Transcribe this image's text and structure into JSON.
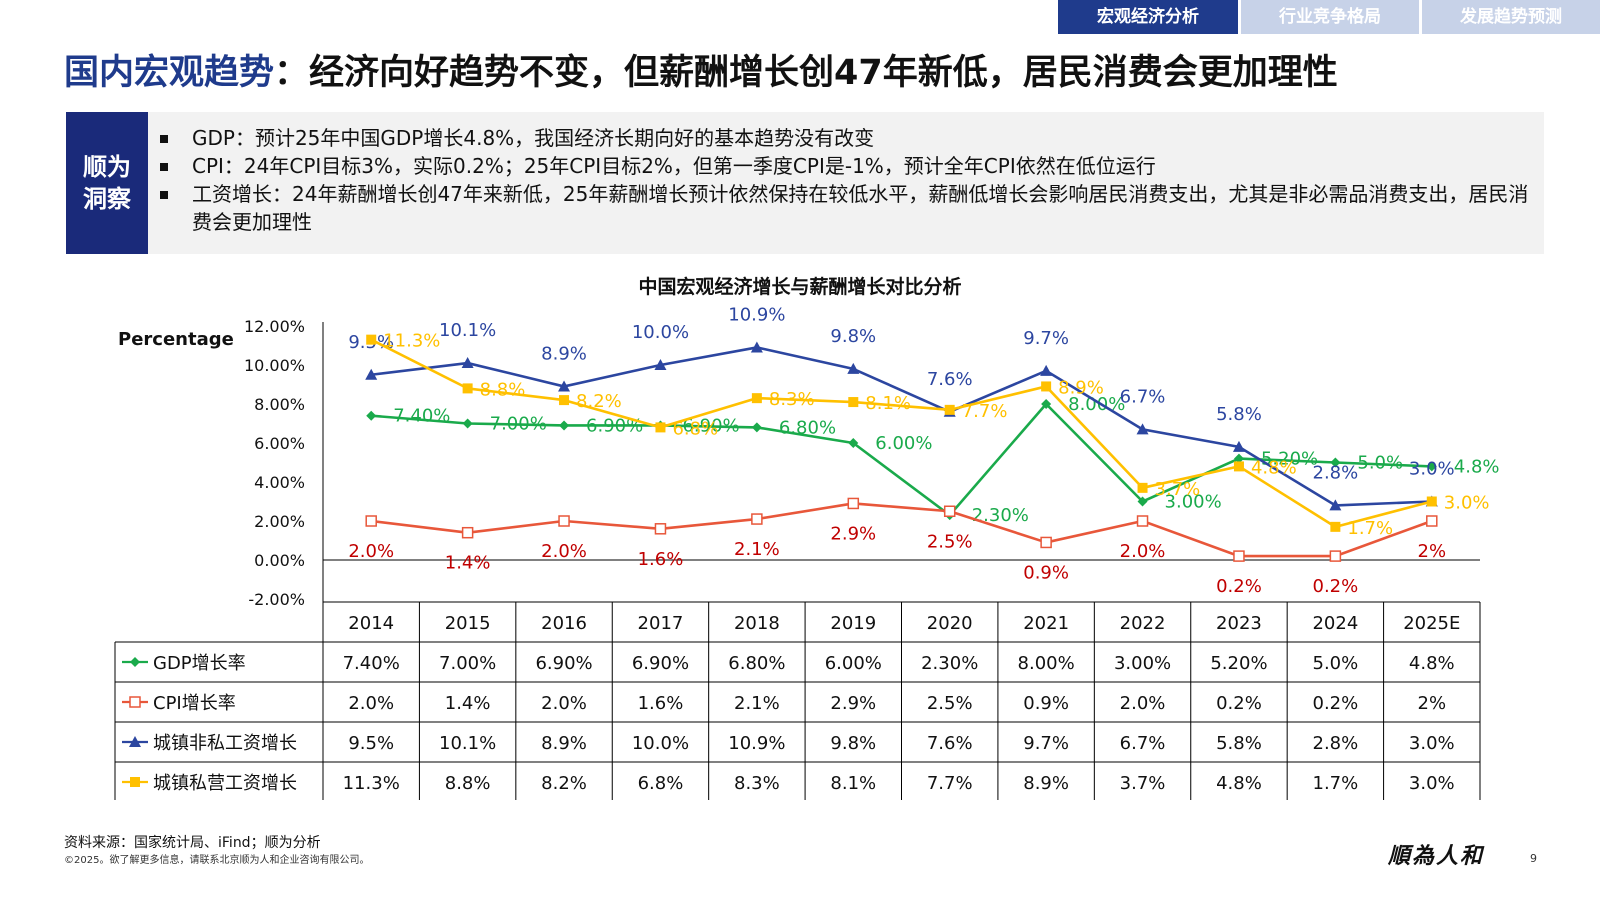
{
  "nav": {
    "tabs": [
      {
        "label": "宏观经济分析",
        "active": true
      },
      {
        "label": "行业竞争格局",
        "active": false
      },
      {
        "label": "发展趋势预测",
        "active": false
      }
    ]
  },
  "header": {
    "title_highlight": "国内宏观趋势",
    "title_rest": "：经济向好趋势不变，但薪酬增长创47年新低，居民消费会更加理性"
  },
  "insight": {
    "label_line1": "顺为",
    "label_line2": "洞察",
    "bullets": [
      "GDP：预计25年中国GDP增长4.8%，我国经济长期向好的基本趋势没有改变",
      "CPI：24年CPI目标3%，实际0.2%；25年CPI目标2%，但第一季度CPI是-1%，预计全年CPI依然在低位运行",
      "工资增长：24年薪酬增长创47年来新低，25年薪酬增长预计依然保持在较低水平，薪酬低增长会影响居民消费支出，尤其是非必需品消费支出，居民消费会更加理性"
    ]
  },
  "chart_data": {
    "type": "line",
    "title": "中国宏观经济增长与薪酬增长对比分析",
    "ylabel": "Percentage",
    "ylim": [
      -2,
      12
    ],
    "yticks": [
      "12.00%",
      "10.00%",
      "8.00%",
      "6.00%",
      "4.00%",
      "2.00%",
      "0.00%",
      "-2.00%"
    ],
    "ytick_values": [
      12,
      10,
      8,
      6,
      4,
      2,
      0,
      -2
    ],
    "categories": [
      "2014",
      "2015",
      "2016",
      "2017",
      "2018",
      "2019",
      "2020",
      "2021",
      "2022",
      "2023",
      "2024",
      "2025E"
    ],
    "grid": false,
    "legend": "data-table",
    "series": [
      {
        "name": "GDP增长率",
        "color": "#1aaa4b",
        "marker": "diamond",
        "values": [
          7.4,
          7.0,
          6.9,
          6.9,
          6.8,
          6.0,
          2.3,
          8.0,
          3.0,
          5.2,
          5.0,
          4.8
        ],
        "labels": [
          "7.40%",
          "7.00%",
          "6.90%",
          "6.90%",
          "6.80%",
          "6.00%",
          "2.30%",
          "8.00%",
          "3.00%",
          "5.20%",
          "5.0%",
          "4.8%"
        ]
      },
      {
        "name": "CPI增长率",
        "color": "#e8573a",
        "label_color": "#c00000",
        "marker": "square-open",
        "values": [
          2.0,
          1.4,
          2.0,
          1.6,
          2.1,
          2.9,
          2.5,
          0.9,
          2.0,
          0.2,
          0.2,
          2.0
        ],
        "labels": [
          "2.0%",
          "1.4%",
          "2.0%",
          "1.6%",
          "2.1%",
          "2.9%",
          "2.5%",
          "0.9%",
          "2.0%",
          "0.2%",
          "0.2%",
          "2%"
        ]
      },
      {
        "name": "城镇非私工资增长",
        "color": "#2c46a0",
        "marker": "triangle",
        "values": [
          9.5,
          10.1,
          8.9,
          10.0,
          10.9,
          9.8,
          7.6,
          9.7,
          6.7,
          5.8,
          2.8,
          3.0
        ],
        "labels": [
          "9.5%",
          "10.1%",
          "8.9%",
          "10.0%",
          "10.9%",
          "9.8%",
          "7.6%",
          "9.7%",
          "6.7%",
          "5.8%",
          "2.8%",
          "3.0%"
        ]
      },
      {
        "name": "城镇私营工资增长",
        "color": "#ffc000",
        "marker": "square",
        "values": [
          11.3,
          8.8,
          8.2,
          6.8,
          8.3,
          8.1,
          7.7,
          8.9,
          3.7,
          4.8,
          1.7,
          3.0
        ],
        "labels": [
          "11.3%",
          "8.8%",
          "8.2%",
          "6.8%",
          "8.3%",
          "8.1%",
          "7.7%",
          "8.9%",
          "3.7%",
          "4.8%",
          "1.7%",
          "3.0%"
        ]
      }
    ]
  },
  "footer": {
    "source": "资料来源：国家统计局、iFind；顺为分析",
    "copyright": "©2025。欲了解更多信息，请联系北京顺为人和企业咨询有限公司。",
    "brand": "順為人和",
    "page_number": "9"
  }
}
